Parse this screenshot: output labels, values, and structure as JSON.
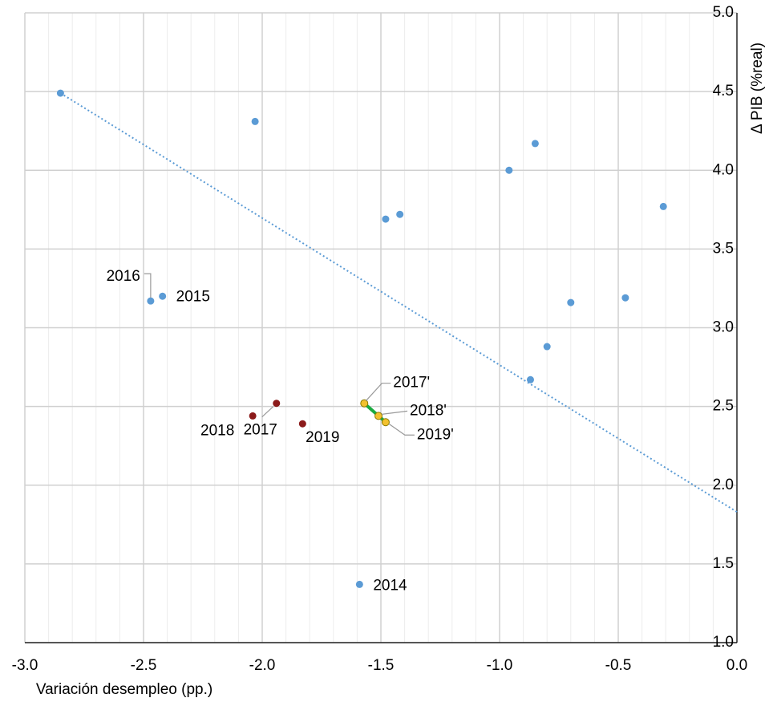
{
  "chart_data": {
    "type": "scatter",
    "x_label": "Variación desempleo (pp.)",
    "y_label": "Δ PIB (%real)",
    "xlim": [
      -3,
      0
    ],
    "ylim": [
      1,
      5
    ],
    "xticks": [
      {
        "value": -3,
        "label": "-3.0"
      },
      {
        "value": -2.5,
        "label": "-2.5"
      },
      {
        "value": -2,
        "label": "-2.0"
      },
      {
        "value": -1.5,
        "label": "-1.5"
      },
      {
        "value": -1,
        "label": "-1.0"
      },
      {
        "value": -0.5,
        "label": "-0.5"
      },
      {
        "value": 0,
        "label": "0.0"
      }
    ],
    "yticks": [
      {
        "value": 1,
        "label": "1.0"
      },
      {
        "value": 1.5,
        "label": "1.5"
      },
      {
        "value": 2,
        "label": "2.0"
      },
      {
        "value": 2.5,
        "label": "2.5"
      },
      {
        "value": 3,
        "label": "3.0"
      },
      {
        "value": 3.5,
        "label": "3.5"
      },
      {
        "value": 4,
        "label": "4.0"
      },
      {
        "value": 4.5,
        "label": "4.5"
      },
      {
        "value": 5,
        "label": "5.0"
      }
    ],
    "grid": true,
    "series": [
      {
        "color": "#5b9bd5",
        "x": [
          -2.85,
          -2.03,
          -0.96,
          -0.85,
          -1.48,
          -1.42,
          -0.31,
          -0.7,
          -0.47,
          -0.8,
          -0.87,
          -2.47,
          -2.42,
          -1.59
        ],
        "values": [
          4.49,
          4.31,
          4.0,
          4.17,
          3.69,
          3.72,
          3.77,
          3.16,
          3.19,
          2.88,
          2.67,
          3.17,
          3.2,
          1.37
        ],
        "labels": [
          null,
          null,
          null,
          null,
          null,
          null,
          null,
          null,
          null,
          null,
          null,
          "2016",
          "2015",
          "2014"
        ]
      },
      {
        "color": "#8b1a1a",
        "x": [
          -2.04,
          -1.94,
          -1.83
        ],
        "values": [
          2.44,
          2.52,
          2.39
        ],
        "labels": [
          "2018",
          "2017",
          "2019"
        ]
      },
      {
        "color": "#f2c12e",
        "line_color": "#1aab40",
        "connect": true,
        "x": [
          -1.57,
          -1.51,
          -1.48
        ],
        "values": [
          2.52,
          2.44,
          2.4
        ],
        "labels": [
          "2017'",
          "2018'",
          "2019'"
        ]
      }
    ],
    "trendline": {
      "color": "#5b9bd5",
      "style": "dotted",
      "x": [
        -2.85,
        0
      ],
      "values": [
        4.49,
        1.83
      ]
    }
  }
}
